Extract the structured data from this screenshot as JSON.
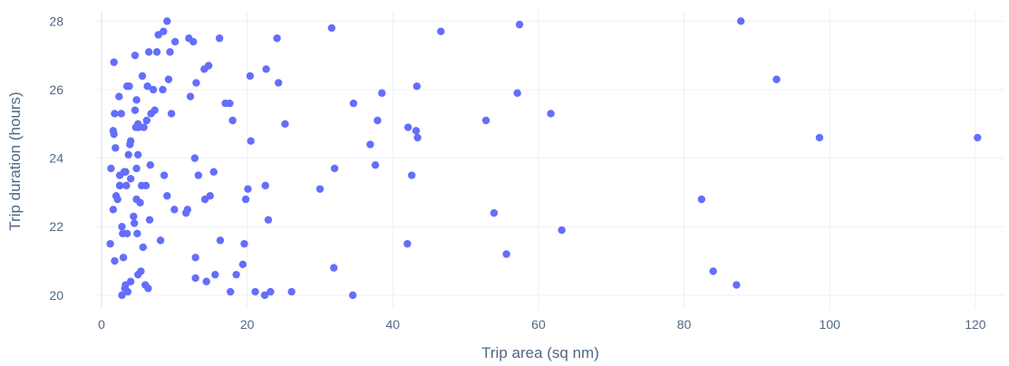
{
  "chart_data": {
    "type": "scatter",
    "title": "",
    "xlabel": "Trip area (sq nm)",
    "ylabel": "Trip duration (hours)",
    "xlim": [
      -1,
      124
    ],
    "ylim": [
      19.6,
      28.3
    ],
    "xticks": [
      0,
      20,
      40,
      60,
      80,
      100,
      120
    ],
    "yticks": [
      20,
      22,
      24,
      26,
      28
    ],
    "grid": true,
    "marker_color": "#636efa",
    "series": [
      {
        "points": [
          [
            1.2,
            21.5
          ],
          [
            1.3,
            23.7
          ],
          [
            1.6,
            22.5
          ],
          [
            1.6,
            24.8
          ],
          [
            1.7,
            24.7
          ],
          [
            1.7,
            26.8
          ],
          [
            1.8,
            25.3
          ],
          [
            1.8,
            21.0
          ],
          [
            1.9,
            24.3
          ],
          [
            2.0,
            22.9
          ],
          [
            2.2,
            22.8
          ],
          [
            2.4,
            25.8
          ],
          [
            2.5,
            23.5
          ],
          [
            2.5,
            23.2
          ],
          [
            2.5,
            23.2
          ],
          [
            2.7,
            25.3
          ],
          [
            2.8,
            22.0
          ],
          [
            2.8,
            20.0
          ],
          [
            2.9,
            21.8
          ],
          [
            3.0,
            21.1
          ],
          [
            3.1,
            23.6
          ],
          [
            3.2,
            20.2
          ],
          [
            3.3,
            20.3
          ],
          [
            3.3,
            23.6
          ],
          [
            3.4,
            23.2
          ],
          [
            3.5,
            26.1
          ],
          [
            3.5,
            21.8
          ],
          [
            3.6,
            20.1
          ],
          [
            3.7,
            24.1
          ],
          [
            3.8,
            26.1
          ],
          [
            3.9,
            24.4
          ],
          [
            4.0,
            24.5
          ],
          [
            4.0,
            23.4
          ],
          [
            4.0,
            20.4
          ],
          [
            4.4,
            22.3
          ],
          [
            4.5,
            22.1
          ],
          [
            4.6,
            27.0
          ],
          [
            4.6,
            25.4
          ],
          [
            4.7,
            24.9
          ],
          [
            4.8,
            25.7
          ],
          [
            4.8,
            23.7
          ],
          [
            4.8,
            22.8
          ],
          [
            4.9,
            21.8
          ],
          [
            5.0,
            20.6
          ],
          [
            5.0,
            24.1
          ],
          [
            5.0,
            25.0
          ],
          [
            5.1,
            24.9
          ],
          [
            5.3,
            22.7
          ],
          [
            5.4,
            20.7
          ],
          [
            5.5,
            23.2
          ],
          [
            5.6,
            26.4
          ],
          [
            5.7,
            21.4
          ],
          [
            5.8,
            24.9
          ],
          [
            6.0,
            20.3
          ],
          [
            6.1,
            23.2
          ],
          [
            6.2,
            25.1
          ],
          [
            6.3,
            26.1
          ],
          [
            6.4,
            20.2
          ],
          [
            6.5,
            27.1
          ],
          [
            6.6,
            22.2
          ],
          [
            6.7,
            23.8
          ],
          [
            6.8,
            25.3
          ],
          [
            7.1,
            26.0
          ],
          [
            7.3,
            25.4
          ],
          [
            7.6,
            27.1
          ],
          [
            7.8,
            27.6
          ],
          [
            8.1,
            21.6
          ],
          [
            8.4,
            26.0
          ],
          [
            8.5,
            27.7
          ],
          [
            8.6,
            23.5
          ],
          [
            9.0,
            28.0
          ],
          [
            9.0,
            22.9
          ],
          [
            9.2,
            26.3
          ],
          [
            9.4,
            27.1
          ],
          [
            9.6,
            25.3
          ],
          [
            10.0,
            22.5
          ],
          [
            10.1,
            27.4
          ],
          [
            11.6,
            22.4
          ],
          [
            11.8,
            22.5
          ],
          [
            12.0,
            27.5
          ],
          [
            12.2,
            25.8
          ],
          [
            12.6,
            27.4
          ],
          [
            12.8,
            24.0
          ],
          [
            12.9,
            21.1
          ],
          [
            12.9,
            20.5
          ],
          [
            13.0,
            26.2
          ],
          [
            13.3,
            23.5
          ],
          [
            14.1,
            26.6
          ],
          [
            14.2,
            22.8
          ],
          [
            14.4,
            20.4
          ],
          [
            14.7,
            26.7
          ],
          [
            14.9,
            22.9
          ],
          [
            15.4,
            23.6
          ],
          [
            15.6,
            20.6
          ],
          [
            16.2,
            27.5
          ],
          [
            16.3,
            21.6
          ],
          [
            17.0,
            25.6
          ],
          [
            17.6,
            25.6
          ],
          [
            17.7,
            20.1
          ],
          [
            18.0,
            25.1
          ],
          [
            18.5,
            20.6
          ],
          [
            19.4,
            20.9
          ],
          [
            19.6,
            21.5
          ],
          [
            19.8,
            22.8
          ],
          [
            20.1,
            23.1
          ],
          [
            20.4,
            26.4
          ],
          [
            20.5,
            24.5
          ],
          [
            21.1,
            20.1
          ],
          [
            22.4,
            20.0
          ],
          [
            22.5,
            23.2
          ],
          [
            22.6,
            26.6
          ],
          [
            22.9,
            22.2
          ],
          [
            23.2,
            20.1
          ],
          [
            24.1,
            27.5
          ],
          [
            24.3,
            26.2
          ],
          [
            25.2,
            25.0
          ],
          [
            26.1,
            20.1
          ],
          [
            30.0,
            23.1
          ],
          [
            31.6,
            27.8
          ],
          [
            31.9,
            20.8
          ],
          [
            32.0,
            23.7
          ],
          [
            34.5,
            20.0
          ],
          [
            34.6,
            25.6
          ],
          [
            36.9,
            24.4
          ],
          [
            37.6,
            23.8
          ],
          [
            37.9,
            25.1
          ],
          [
            38.5,
            25.9
          ],
          [
            42.0,
            21.5
          ],
          [
            42.1,
            24.9
          ],
          [
            42.6,
            23.5
          ],
          [
            43.2,
            24.8
          ],
          [
            43.3,
            26.1
          ],
          [
            43.4,
            24.6
          ],
          [
            46.6,
            27.7
          ],
          [
            52.8,
            25.1
          ],
          [
            53.9,
            22.4
          ],
          [
            55.6,
            21.2
          ],
          [
            57.1,
            25.9
          ],
          [
            57.4,
            27.9
          ],
          [
            61.7,
            25.3
          ],
          [
            63.2,
            21.9
          ],
          [
            82.4,
            22.8
          ],
          [
            84.0,
            20.7
          ],
          [
            87.2,
            20.3
          ],
          [
            87.8,
            28.0
          ],
          [
            92.7,
            26.3
          ],
          [
            98.6,
            24.6
          ],
          [
            120.3,
            24.6
          ]
        ]
      }
    ]
  }
}
